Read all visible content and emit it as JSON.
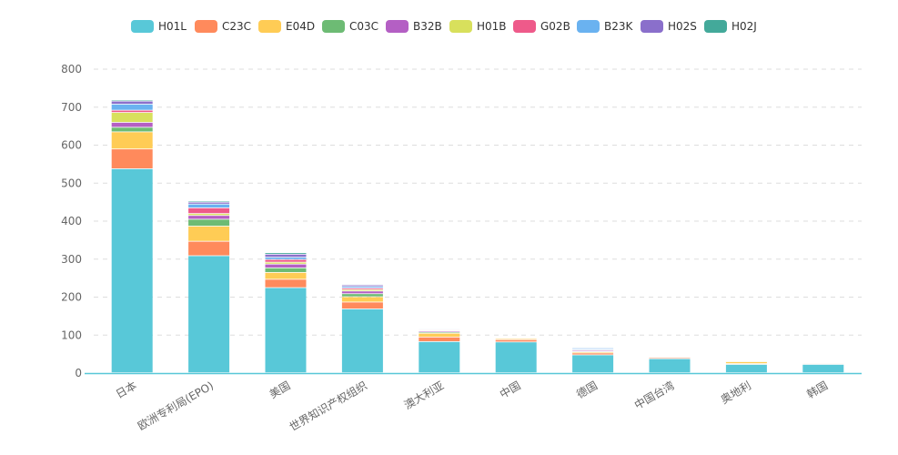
{
  "chart_data": {
    "type": "bar",
    "stacked": true,
    "categories": [
      "日本",
      "欧洲专利局(EPO)",
      "美国",
      "世界知识产权组织",
      "澳大利亚",
      "中国",
      "德国",
      "中国台湾",
      "奥地利",
      "韩国"
    ],
    "series": [
      {
        "name": "H01L",
        "color": "#58C8D8",
        "values": [
          537,
          308,
          224,
          168,
          82,
          81,
          47,
          37,
          22,
          22
        ]
      },
      {
        "name": "C23C",
        "color": "#FF8A5C",
        "values": [
          52,
          38,
          22,
          18,
          12,
          6,
          5,
          3,
          2,
          2
        ]
      },
      {
        "name": "E04D",
        "color": "#FFCC55",
        "values": [
          45,
          40,
          18,
          14,
          10,
          3,
          3,
          2,
          5,
          2
        ]
      },
      {
        "name": "C03C",
        "color": "#6DBB74",
        "values": [
          12,
          18,
          12,
          8,
          3,
          1,
          2,
          1,
          2,
          1
        ]
      },
      {
        "name": "B32B",
        "color": "#B45FC4",
        "values": [
          13,
          10,
          10,
          7,
          3,
          1,
          3,
          1,
          1,
          1
        ]
      },
      {
        "name": "H01B",
        "color": "#D8E05C",
        "values": [
          26,
          5,
          5,
          4,
          2,
          1,
          1,
          0,
          1,
          0
        ]
      },
      {
        "name": "G02B",
        "color": "#EE5A8A",
        "values": [
          6,
          15,
          7,
          4,
          2,
          1,
          1,
          1,
          1,
          1
        ]
      },
      {
        "name": "B23K",
        "color": "#6AB2F0",
        "values": [
          16,
          10,
          6,
          4,
          2,
          1,
          3,
          0,
          1,
          1
        ]
      },
      {
        "name": "H02S",
        "color": "#8A6FCB",
        "values": [
          8,
          5,
          8,
          4,
          1,
          1,
          2,
          0,
          0,
          0
        ]
      },
      {
        "name": "H02J",
        "color": "#43A99A",
        "values": [
          3,
          3,
          4,
          2,
          1,
          0,
          2,
          0,
          0,
          0
        ]
      }
    ],
    "ylim": [
      0,
      800
    ],
    "yticks": [
      0,
      100,
      200,
      300,
      400,
      500,
      600,
      700,
      800
    ],
    "grid": true,
    "legend_position": "top-center"
  }
}
